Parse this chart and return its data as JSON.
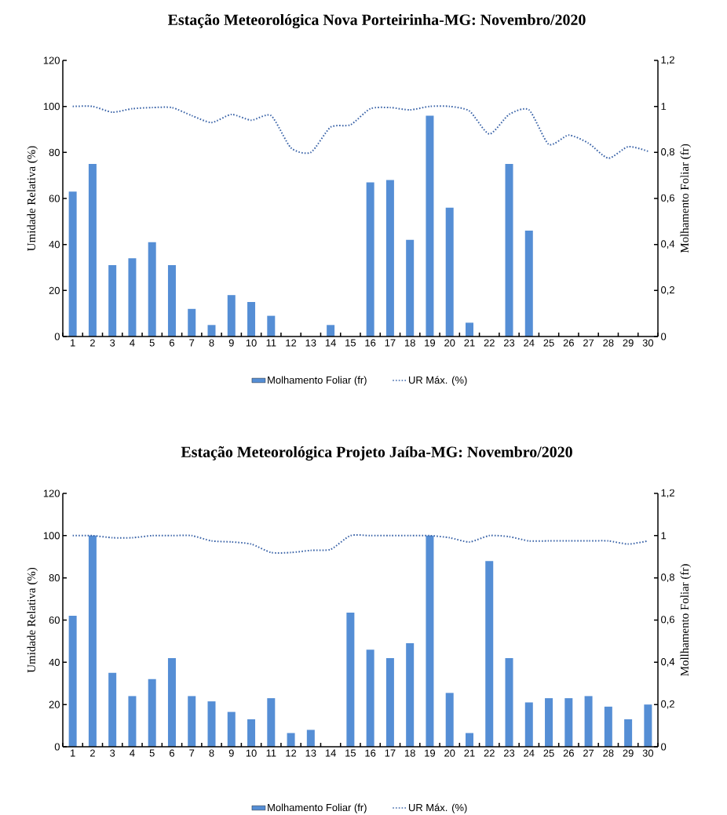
{
  "chart_data": [
    {
      "type": "bar",
      "title": "Estação Meteorológica Nova Porteirinha-MG: Novembro/2020",
      "ylabel": "Umidade Relativa (%)",
      "y2label": "Molhamento Foliar (fr)",
      "categories": [
        "1",
        "2",
        "3",
        "4",
        "5",
        "6",
        "7",
        "8",
        "9",
        "10",
        "11",
        "12",
        "13",
        "14",
        "15",
        "16",
        "17",
        "18",
        "19",
        "20",
        "21",
        "22",
        "23",
        "24",
        "25",
        "26",
        "27",
        "28",
        "29",
        "30"
      ],
      "series": [
        {
          "name": "Molhamento Foliar (fr)",
          "axis": "y2",
          "color": "#558ed5",
          "values": [
            0.63,
            0.75,
            0.31,
            0.34,
            0.41,
            0.31,
            0.12,
            0.05,
            0.18,
            0.15,
            0.09,
            0,
            0,
            0.05,
            0,
            0.67,
            0.68,
            0.42,
            0.96,
            0.56,
            0.06,
            0,
            0.75,
            0.46,
            0,
            0,
            0,
            0,
            0,
            0
          ]
        },
        {
          "name": "UR Máx. (%)",
          "type": "line",
          "axis": "y",
          "line_style": "dotted",
          "color": "#3b64a8",
          "values": [
            100,
            100,
            97.5,
            99,
            99.5,
            99.5,
            96,
            93,
            96.5,
            94,
            96,
            82,
            80,
            91,
            92,
            99,
            99.5,
            98.5,
            100,
            100,
            98,
            88,
            96.5,
            98.5,
            83.5,
            87.5,
            84,
            77.5,
            82.5,
            80.5
          ]
        }
      ],
      "ylim": [
        0,
        120
      ],
      "yticks": [
        0,
        20,
        40,
        60,
        80,
        100,
        120
      ],
      "y2lim": [
        0,
        1.2
      ],
      "y2ticks": [
        0,
        {
          "value": 0.2,
          "label": "0,2"
        },
        {
          "value": 0.4,
          "label": "0,4"
        },
        {
          "value": 0.6,
          "label": "0,6"
        },
        {
          "value": 0.8,
          "label": "0,8"
        },
        1,
        {
          "value": 1.2,
          "label": "1,2"
        }
      ],
      "legend": "bottom"
    },
    {
      "type": "bar",
      "title": "Estação Meteorológica Projeto Jaíba-MG: Novembro/2020",
      "ylabel": "Umidade Relativa (%)",
      "y2label": "Mollhamento Foliar (fr)",
      "categories": [
        "1",
        "2",
        "3",
        "4",
        "5",
        "6",
        "7",
        "8",
        "9",
        "10",
        "11",
        "12",
        "13",
        "14",
        "15",
        "16",
        "17",
        "18",
        "19",
        "20",
        "21",
        "22",
        "23",
        "24",
        "25",
        "26",
        "27",
        "28",
        "29",
        "30"
      ],
      "series": [
        {
          "name": "Molhamento Foliar (fr)",
          "axis": "y2",
          "color": "#558ed5",
          "values": [
            0.62,
            1.0,
            0.35,
            0.24,
            0.32,
            0.42,
            0.24,
            0.215,
            0.165,
            0.13,
            0.23,
            0.065,
            0.08,
            0,
            0.635,
            0.46,
            0.42,
            0.49,
            1.0,
            0.255,
            0.065,
            0.88,
            0.42,
            0.21,
            0.23,
            0.23,
            0.24,
            0.19,
            0.13,
            0.2
          ]
        },
        {
          "name": "UR Máx. (%)",
          "type": "line",
          "axis": "y",
          "line_style": "dotted",
          "color": "#3b64a8",
          "values": [
            100,
            100,
            99,
            99,
            100,
            100,
            100,
            97.5,
            97,
            96,
            92,
            92,
            93,
            93.5,
            100,
            100,
            100,
            100,
            100,
            99,
            97,
            100,
            99.5,
            97.5,
            97.5,
            97.5,
            97.5,
            97.5,
            96,
            97.5
          ]
        }
      ],
      "ylim": [
        0,
        120
      ],
      "yticks": [
        0,
        20,
        40,
        60,
        80,
        100,
        120
      ],
      "y2lim": [
        0,
        1.2
      ],
      "y2ticks": [
        0,
        {
          "value": 0.2,
          "label": "0,2"
        },
        {
          "value": 0.4,
          "label": "0,4"
        },
        {
          "value": 0.6,
          "label": "0,6"
        },
        {
          "value": 0.8,
          "label": "0,8"
        },
        1,
        {
          "value": 1.2,
          "label": "1,2"
        }
      ],
      "legend": "bottom"
    }
  ]
}
